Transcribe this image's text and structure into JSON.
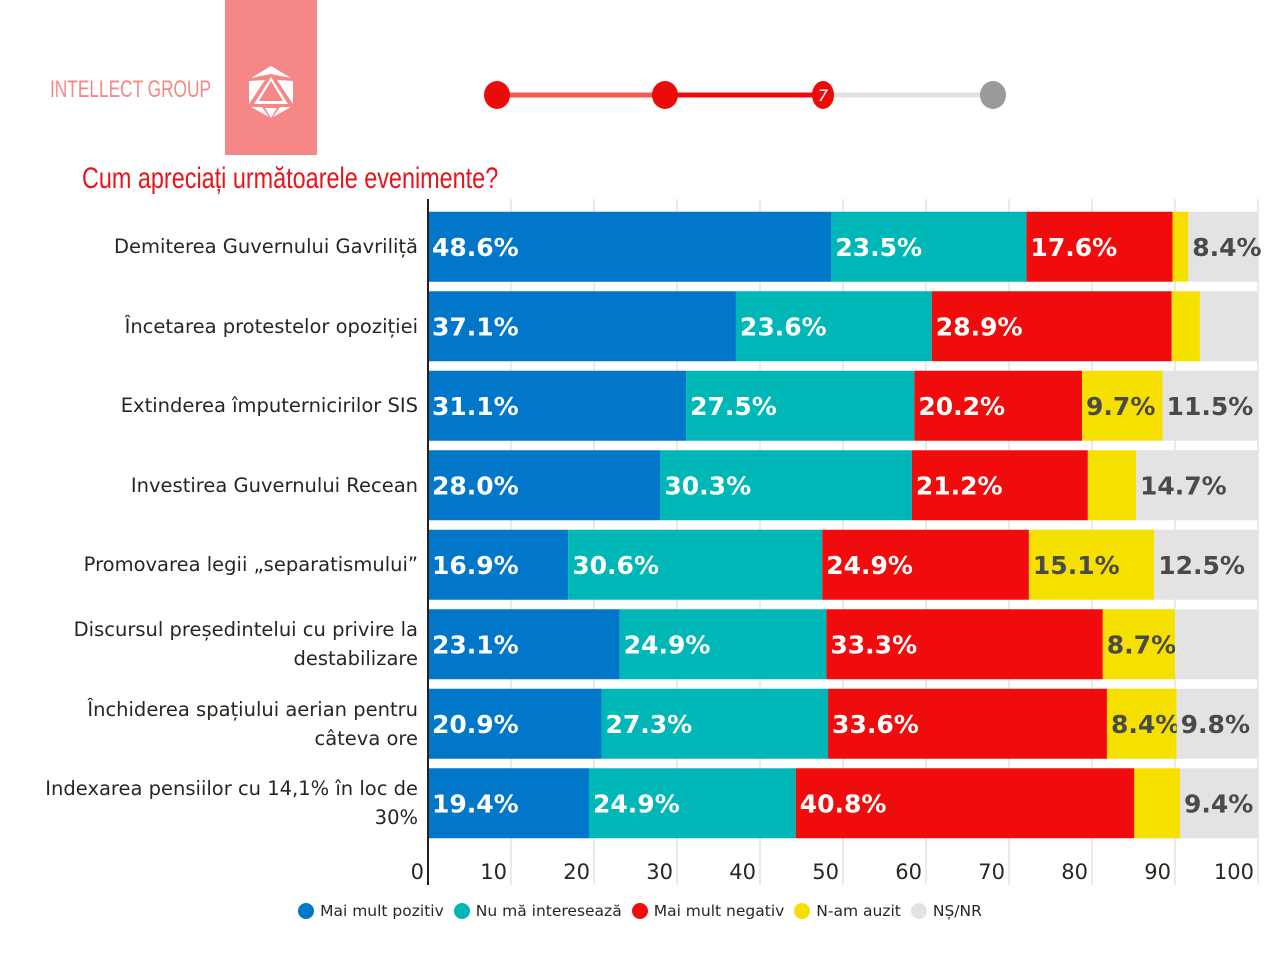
{
  "brand": {
    "name": "INTELLECT GROUP",
    "logo": "icosahedron-logo-icon"
  },
  "progress": {
    "current_step_label": "7",
    "steps": 4,
    "current_step": 3
  },
  "chart_data": {
    "type": "bar",
    "orientation": "horizontal-stacked",
    "title": "Cum apreciați următoarele evenimente?",
    "xlabel": "",
    "ylabel": "",
    "xlim": [
      0,
      100
    ],
    "x_ticks": [
      "0",
      "10",
      "20",
      "30",
      "40",
      "50",
      "60",
      "70",
      "80",
      "90",
      "100"
    ],
    "grid": true,
    "legend_position": "bottom",
    "categories": [
      "Demiterea Guvernului Gavriliță",
      "Încetarea protestelor opoziției",
      "Extinderea împuternicirilor SIS",
      "Investirea Guvernului Recean",
      "Promovarea legii „separatismului”",
      "Discursul președintelui cu privire la destabilizare",
      "Închiderea spațiului aerian pentru câteva ore",
      "Indexarea pensiilor cu 14,1% în loc de 30%"
    ],
    "category_lines": [
      [
        "Demiterea Guvernului Gavriliță"
      ],
      [
        "Încetarea protestelor opoziției"
      ],
      [
        "Extinderea împuternicirilor SIS"
      ],
      [
        "Investirea Guvernului Recean"
      ],
      [
        "Promovarea legii „separatismului”"
      ],
      [
        "Discursul președintelui cu privire la",
        "destabilizare"
      ],
      [
        "Închiderea spațiului aerian pentru",
        "câteva ore"
      ],
      [
        "Indexarea pensiilor cu 14,1% în loc de",
        "30%"
      ]
    ],
    "series": [
      {
        "name": "Mai mult pozitiv",
        "color": "#0077c8",
        "label_color": "#ffffff",
        "values": [
          48.6,
          37.1,
          31.1,
          28.0,
          16.9,
          23.1,
          20.9,
          19.4
        ],
        "labels": [
          "48.6%",
          "37.1%",
          "31.1%",
          "28.0%",
          "16.9%",
          "23.1%",
          "20.9%",
          "19.4%"
        ]
      },
      {
        "name": "Nu mă interesează",
        "color": "#00b7b7",
        "label_color": "#ffffff",
        "values": [
          23.5,
          23.6,
          27.5,
          30.3,
          30.6,
          24.9,
          27.3,
          24.9
        ],
        "labels": [
          "23.5%",
          "23.6%",
          "27.5%",
          "30.3%",
          "30.6%",
          "24.9%",
          "27.3%",
          "24.9%"
        ]
      },
      {
        "name": "Mai mult negativ",
        "color": "#f00b0d",
        "label_color": "#ffffff",
        "values": [
          17.6,
          28.9,
          20.2,
          21.2,
          24.9,
          33.3,
          33.6,
          40.8
        ],
        "labels": [
          "17.6%",
          "28.9%",
          "20.2%",
          "21.2%",
          "24.9%",
          "33.3%",
          "33.6%",
          "40.8%"
        ]
      },
      {
        "name": "N-am auzit",
        "color": "#f5e000",
        "label_color": "#4a4a4a",
        "values": [
          1.9,
          3.4,
          9.7,
          5.8,
          15.1,
          8.7,
          8.4,
          5.5
        ],
        "labels": [
          "",
          "",
          "9.7%",
          "",
          "15.1%",
          "8.7%",
          "8.4%",
          ""
        ]
      },
      {
        "name": "NȘ/NR",
        "color": "#e3e3e3",
        "label_color": "#4a4a4a",
        "values": [
          8.4,
          7.0,
          11.5,
          14.7,
          12.5,
          10.0,
          9.8,
          9.4
        ],
        "labels": [
          "8.4%",
          "",
          "11.5%",
          "14.7%",
          "12.5%",
          "",
          "9.8%",
          "9.4%"
        ]
      }
    ]
  }
}
